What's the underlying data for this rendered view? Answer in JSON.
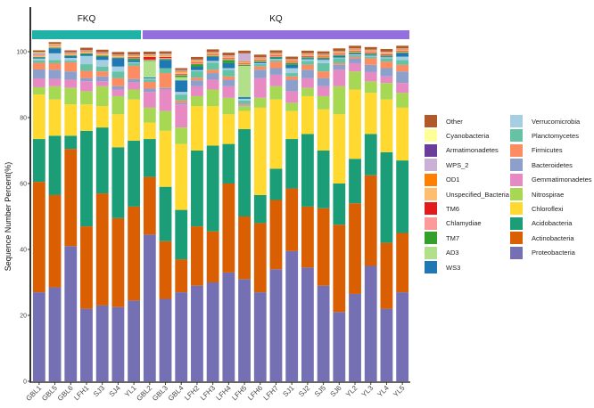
{
  "chart_data": {
    "type": "bar",
    "stacked": true,
    "title": "",
    "xlabel": "",
    "ylabel": "Sequence Number Percent(%)",
    "ylim": [
      0,
      100
    ],
    "yticks": [
      0,
      20,
      40,
      60,
      80,
      100
    ],
    "grid": false,
    "legend_position": "right",
    "groups": [
      {
        "label": "FKQ",
        "color": "#20B2A6",
        "samples": [
          "GBL1",
          "GBL5",
          "GBL6",
          "LFH1",
          "SJ3",
          "SJ4",
          "YL1"
        ]
      },
      {
        "label": "KQ",
        "color": "#9370DB",
        "samples": [
          "GBL2",
          "GBL3",
          "GBL4",
          "LFH2",
          "LFH3",
          "LFH4",
          "LFH5",
          "LFH6",
          "LFH7",
          "SJ1",
          "SJ2",
          "SJ5",
          "SJ6",
          "YL2",
          "YL3",
          "YL4",
          "YL5"
        ]
      }
    ],
    "categories": [
      "GBL1",
      "GBL5",
      "GBL6",
      "LFH1",
      "SJ3",
      "SJ4",
      "YL1",
      "GBL2",
      "GBL3",
      "GBL4",
      "LFH2",
      "LFH3",
      "LFH4",
      "LFH5",
      "LFH6",
      "LFH7",
      "SJ1",
      "SJ2",
      "SJ5",
      "SJ6",
      "YL2",
      "YL3",
      "YL4",
      "YL5"
    ],
    "series": [
      {
        "name": "Proteobacteria",
        "color": "#7570B3",
        "values": [
          27,
          28.5,
          41,
          22,
          23,
          22.5,
          24.5,
          44.5,
          25,
          27,
          29,
          30,
          33,
          31,
          27,
          34,
          39.5,
          34.5,
          29,
          21,
          26.5,
          35,
          22,
          27
        ]
      },
      {
        "name": "Actinobacteria",
        "color": "#D95F02",
        "values": [
          33.5,
          28,
          29.5,
          25,
          34,
          27,
          28.5,
          17.5,
          17.5,
          10,
          18,
          15.5,
          27,
          19,
          21,
          21,
          19,
          18.5,
          23.5,
          26.5,
          27.5,
          27.5,
          20,
          18
        ]
      },
      {
        "name": "Acidobacteria",
        "color": "#1B9E77",
        "values": [
          13,
          18,
          4,
          29,
          20,
          21.5,
          20,
          11.5,
          16.5,
          15,
          23,
          26,
          12,
          26.5,
          8.5,
          9.5,
          15,
          22,
          17.5,
          12.5,
          13.5,
          12.5,
          27.5,
          22
        ]
      },
      {
        "name": "Chloroflexi",
        "color": "#FFD92F",
        "values": [
          13.5,
          11,
          9.5,
          8,
          6.5,
          10,
          12.5,
          5,
          17,
          20,
          13.5,
          12,
          9,
          5.5,
          26.5,
          21,
          8.5,
          11.5,
          12.5,
          21,
          21,
          12.5,
          16,
          16
        ]
      },
      {
        "name": "Nitrospirae",
        "color": "#A6D854",
        "values": [
          2.2,
          4,
          5,
          4,
          6,
          5.5,
          3,
          4.5,
          6,
          5,
          3,
          5,
          5,
          1.5,
          3,
          4,
          2.5,
          2.5,
          4,
          8.5,
          5.5,
          3.5,
          5,
          4.5
        ]
      },
      {
        "name": "Gemmatimonadetes",
        "color": "#E78AC3",
        "values": [
          2.7,
          2.2,
          2.5,
          3,
          1.5,
          2,
          2.2,
          4.8,
          6.5,
          7,
          3,
          3,
          3.5,
          0.2,
          6,
          3.5,
          3.5,
          3,
          3,
          5,
          2.5,
          2.8,
          2,
          3
        ]
      },
      {
        "name": "Bacteroidetes",
        "color": "#8DA0CB",
        "values": [
          2.7,
          2.8,
          2.5,
          1,
          1.5,
          1,
          1,
          1,
          0.5,
          0.5,
          1.8,
          2,
          2,
          0.3,
          2.5,
          2,
          3.5,
          2.5,
          2.5,
          1.5,
          1.5,
          2.2,
          2.5,
          3.5
        ]
      },
      {
        "name": "Firmicutes",
        "color": "#FC8D62",
        "values": [
          2,
          2,
          2.8,
          2.2,
          1.5,
          2.5,
          4,
          2,
          4.5,
          0.7,
          0.8,
          1,
          1,
          0.2,
          1,
          2,
          1,
          1.5,
          2,
          0.5,
          0.5,
          2,
          2,
          2
        ]
      },
      {
        "name": "Planctomycetes",
        "color": "#66C2A5",
        "values": [
          0.8,
          1,
          0.5,
          2,
          1.5,
          2,
          0.8,
          0.8,
          1.5,
          1.8,
          2,
          2.2,
          2,
          1,
          0.8,
          0.5,
          1,
          1.2,
          2.5,
          1.5,
          0.5,
          0.5,
          1,
          1.5
        ]
      },
      {
        "name": "Verrucomicrobia",
        "color": "#A6CEE3",
        "values": [
          0.5,
          2,
          0.8,
          2.5,
          2,
          1.5,
          0.3,
          0.3,
          0,
          0.8,
          0.3,
          0.5,
          0.5,
          0.5,
          0.2,
          0.3,
          1.5,
          0.5,
          1,
          0.2,
          0.2,
          0.3,
          0.3,
          1
        ]
      },
      {
        "name": "WS3",
        "color": "#1F78B4",
        "values": [
          0.3,
          1.5,
          0.6,
          0.5,
          1,
          2.5,
          0.7,
          0.3,
          2.5,
          3.5,
          1,
          1.2,
          1.5,
          0.5,
          0.3,
          0.3,
          1,
          0.3,
          0.3,
          0.5,
          0.3,
          0.3,
          0.3,
          1
        ]
      },
      {
        "name": "AD3",
        "color": "#B2DF8A",
        "values": [
          0,
          0,
          0,
          0,
          0,
          0,
          0,
          5,
          0,
          1,
          0,
          0,
          0,
          9.5,
          0,
          0,
          0,
          0,
          0,
          0,
          0,
          0,
          0,
          0
        ]
      },
      {
        "name": "TM7",
        "color": "#33A02C",
        "values": [
          0.2,
          0.2,
          0.2,
          0.3,
          0.3,
          0.2,
          0.5,
          0.2,
          0.3,
          0.5,
          0.8,
          0.3,
          1,
          0.3,
          0.3,
          0.3,
          0.5,
          0.3,
          0.3,
          0.3,
          0.3,
          0.3,
          0.2,
          0.3
        ]
      },
      {
        "name": "Chlamydiae",
        "color": "#FB9A99",
        "values": [
          0.2,
          0.2,
          0.2,
          0.2,
          0.2,
          0.2,
          0.2,
          0.2,
          0.3,
          0.3,
          0.3,
          0.2,
          0.3,
          0.2,
          0.2,
          0.2,
          0.2,
          0.2,
          0.2,
          0.2,
          0.2,
          0.2,
          0.2,
          0.2
        ]
      },
      {
        "name": "TM6",
        "color": "#E31A1C",
        "values": [
          0,
          0,
          0,
          0,
          0,
          0,
          0.2,
          0.8,
          0.3,
          0.2,
          0.2,
          0.2,
          0.2,
          0.2,
          0.2,
          0.2,
          0.2,
          0.2,
          0.2,
          0.2,
          0.2,
          0.2,
          0.2,
          0.2
        ]
      },
      {
        "name": "Unspecified_Bacteria",
        "color": "#FDBF6F",
        "values": [
          0.2,
          0.3,
          0.2,
          0.2,
          0.3,
          0.2,
          0.2,
          0.3,
          0.4,
          0.4,
          0.4,
          0.3,
          0.3,
          0.3,
          0.3,
          0.3,
          0.3,
          0.3,
          0.3,
          0.3,
          0.3,
          0.3,
          0.3,
          0.3
        ]
      },
      {
        "name": "OD1",
        "color": "#FF7F00",
        "values": [
          0.2,
          0.2,
          0.2,
          0.2,
          0.2,
          0.2,
          0.2,
          0.2,
          0.2,
          0.3,
          0.2,
          0.2,
          0.2,
          0.3,
          0.2,
          0.2,
          0.2,
          0.2,
          0.2,
          0.2,
          0.2,
          0.2,
          0.2,
          0.2
        ]
      },
      {
        "name": "WPS_2",
        "color": "#CAB2D6",
        "values": [
          0.2,
          0.1,
          0.1,
          0.1,
          0.1,
          0.1,
          0.1,
          0.1,
          0.2,
          0.2,
          0.1,
          0.1,
          0.2,
          2.3,
          0.1,
          0.1,
          0.1,
          0.1,
          0.1,
          0.1,
          0.1,
          0.1,
          0.1,
          0.1
        ]
      },
      {
        "name": "Armatimonadetes",
        "color": "#6A3D9A",
        "values": [
          0.2,
          0.1,
          0.1,
          0.1,
          0.1,
          0.1,
          0.1,
          0.1,
          0.1,
          0.1,
          0.1,
          0.1,
          0.1,
          0.1,
          0.1,
          0.1,
          0.1,
          0.1,
          0.1,
          0.1,
          0.1,
          0.1,
          0.1,
          0.1
        ]
      },
      {
        "name": "Cyanobacteria",
        "color": "#FFFF99",
        "values": [
          0.4,
          0.2,
          0.1,
          0.1,
          0.1,
          0.1,
          0.1,
          0.1,
          0.1,
          0.1,
          0.1,
          0.1,
          0.1,
          0.1,
          0.1,
          0.1,
          0.1,
          0.1,
          0.1,
          0.1,
          0.1,
          0.1,
          0.1,
          0.1
        ]
      },
      {
        "name": "Other",
        "color": "#B15928",
        "values": [
          0.6,
          0.6,
          0.6,
          0.8,
          0.8,
          0.8,
          0.8,
          0.8,
          0.7,
          0.6,
          0.8,
          0.8,
          0.8,
          0.8,
          0.8,
          0.8,
          0.8,
          0.8,
          0.8,
          0.8,
          0.8,
          0.8,
          0.8,
          0.8
        ]
      }
    ],
    "legend_order": [
      [
        "Other",
        "Cyanobacteria",
        "Armatimonadetes",
        "WPS_2",
        "OD1",
        "Unspecified_Bacteria",
        "TM6",
        "Chlamydiae",
        "TM7",
        "AD3",
        "WS3"
      ],
      [
        "Verrucomicrobia",
        "Planctomycetes",
        "Firmicutes",
        "Bacteroidetes",
        "Gemmatimonadetes",
        "Nitrospirae",
        "Chloroflexi",
        "Acidobacteria",
        "Actinobacteria",
        "Proteobacteria"
      ]
    ]
  }
}
